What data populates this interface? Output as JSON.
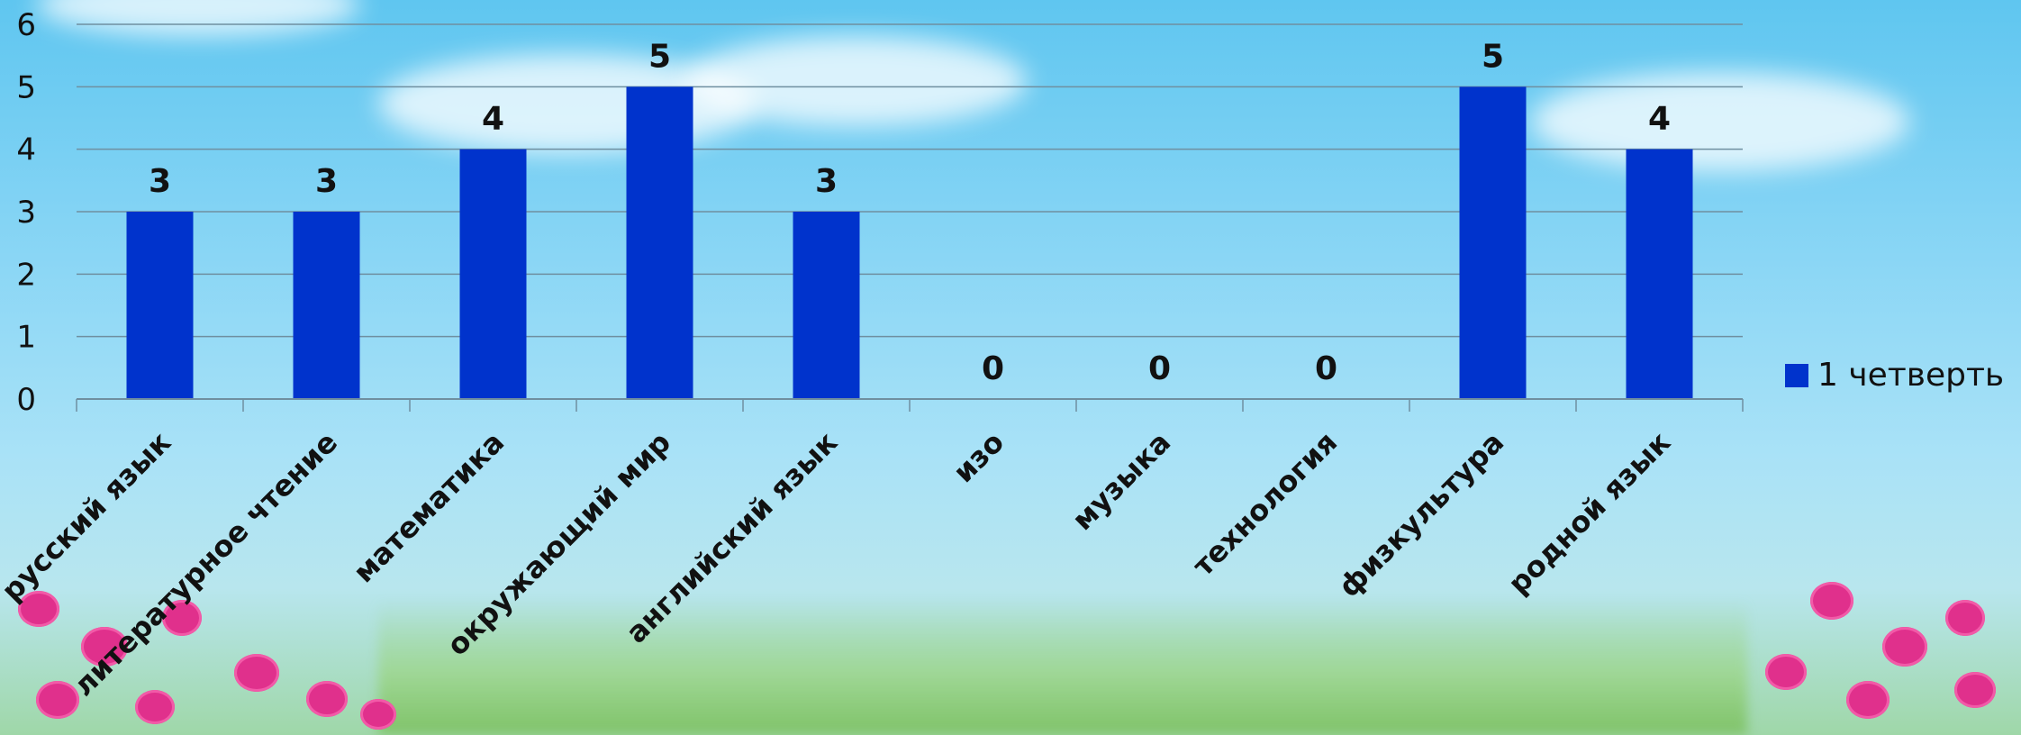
{
  "chart_data": {
    "type": "bar",
    "categories": [
      "русский язык",
      "литературное чтение",
      "математика",
      "окружающий мир",
      "английский язык",
      "изо",
      "музыка",
      "технология",
      "физкультура",
      "родной язык"
    ],
    "series": [
      {
        "name": "1 четверть",
        "values": [
          3,
          3,
          4,
          5,
          3,
          0,
          0,
          0,
          5,
          4
        ]
      }
    ],
    "ylim": [
      0,
      6
    ],
    "yticks": [
      0,
      1,
      2,
      3,
      4,
      5,
      6
    ],
    "grid": true,
    "legend": "right",
    "bar_color": "#0033cc",
    "title": "",
    "xlabel": "",
    "ylabel": ""
  }
}
